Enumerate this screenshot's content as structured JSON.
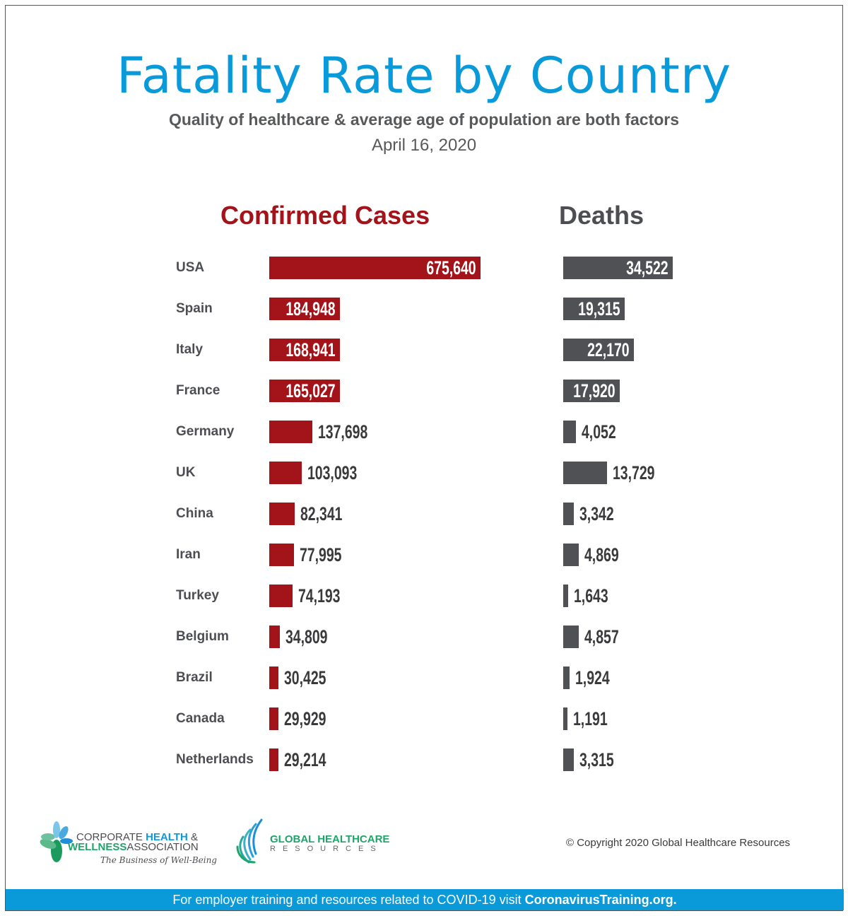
{
  "title": "Fatality Rate by Country",
  "subtitle": "Quality of healthcare & average age of population are both factors",
  "date": "April 16, 2020",
  "chart_data": {
    "type": "bar",
    "orientation": "horizontal",
    "categories": [
      "USA",
      "Spain",
      "Italy",
      "France",
      "Germany",
      "UK",
      "China",
      "Iran",
      "Turkey",
      "Belgium",
      "Brazil",
      "Canada",
      "Netherlands"
    ],
    "series": [
      {
        "name": "Confirmed Cases",
        "color": "#a3141a",
        "values": [
          675640,
          184948,
          168941,
          165027,
          137698,
          103093,
          82341,
          77995,
          74193,
          34809,
          30425,
          29929,
          29214
        ],
        "labels": [
          "675,640",
          "184,948",
          "168,941",
          "165,027",
          "137,698",
          "103,093",
          "82,341",
          "77,995",
          "74,193",
          "34,809",
          "30,425",
          "29,929",
          "29,214"
        ]
      },
      {
        "name": "Deaths",
        "color": "#505154",
        "values": [
          34522,
          19315,
          22170,
          17920,
          4052,
          13729,
          3342,
          4869,
          1643,
          4857,
          1924,
          1191,
          3315
        ],
        "labels": [
          "34,522",
          "19,315",
          "22,170",
          "17,920",
          "4,052",
          "13,729",
          "3,342",
          "4,869",
          "1,643",
          "4,857",
          "1,924",
          "1,191",
          "3,315"
        ]
      }
    ]
  },
  "logos": {
    "chwa": {
      "line1a": "CORPORATE ",
      "line1b": "HEALTH",
      "line1c": " &",
      "line2a": "WELLNESS",
      "line2b": "ASSOCIATION",
      "tagline": "The Business of Well-Being"
    },
    "ghr": {
      "line1": "GLOBAL HEALTHCARE",
      "line2": "RESOURCES"
    }
  },
  "copyright": "© Copyright 2020 Global Healthcare Resources",
  "footer": {
    "text": "For employer training and resources related to COVID-19 visit ",
    "link": "CoronavirusTraining.org."
  }
}
